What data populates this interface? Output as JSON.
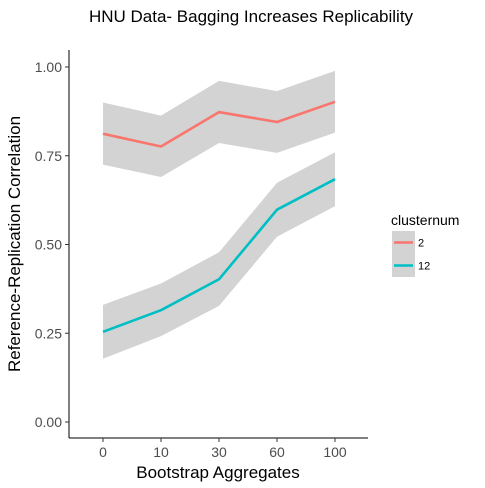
{
  "chart_data": {
    "type": "line",
    "title": "HNU Data- Bagging Increases Replicability",
    "xlabel": "Bootstrap Aggregates",
    "ylabel": "Reference-Replication Correlation",
    "categories": [
      "0",
      "10",
      "30",
      "60",
      "100"
    ],
    "ylim": [
      0,
      1.03
    ],
    "yticks": [
      0.0,
      0.25,
      0.5,
      0.75,
      1.0
    ],
    "ytick_labels": [
      "0.00",
      "0.25",
      "0.50",
      "0.75",
      "1.00"
    ],
    "grid": false,
    "legend": {
      "title": "clusternum",
      "placement": "right"
    },
    "series": [
      {
        "name": "2",
        "color": "#f8766d",
        "values": [
          0.812,
          0.776,
          0.873,
          0.845,
          0.902
        ],
        "lower": [
          0.725,
          0.69,
          0.786,
          0.758,
          0.815
        ],
        "upper": [
          0.9,
          0.863,
          0.961,
          0.932,
          0.989
        ]
      },
      {
        "name": "12",
        "color": "#00bfc4",
        "values": [
          0.254,
          0.315,
          0.402,
          0.598,
          0.684
        ],
        "lower": [
          0.178,
          0.242,
          0.327,
          0.522,
          0.608
        ],
        "upper": [
          0.33,
          0.39,
          0.478,
          0.674,
          0.76
        ]
      }
    ],
    "ribbon_color": "#d3d3d3"
  }
}
